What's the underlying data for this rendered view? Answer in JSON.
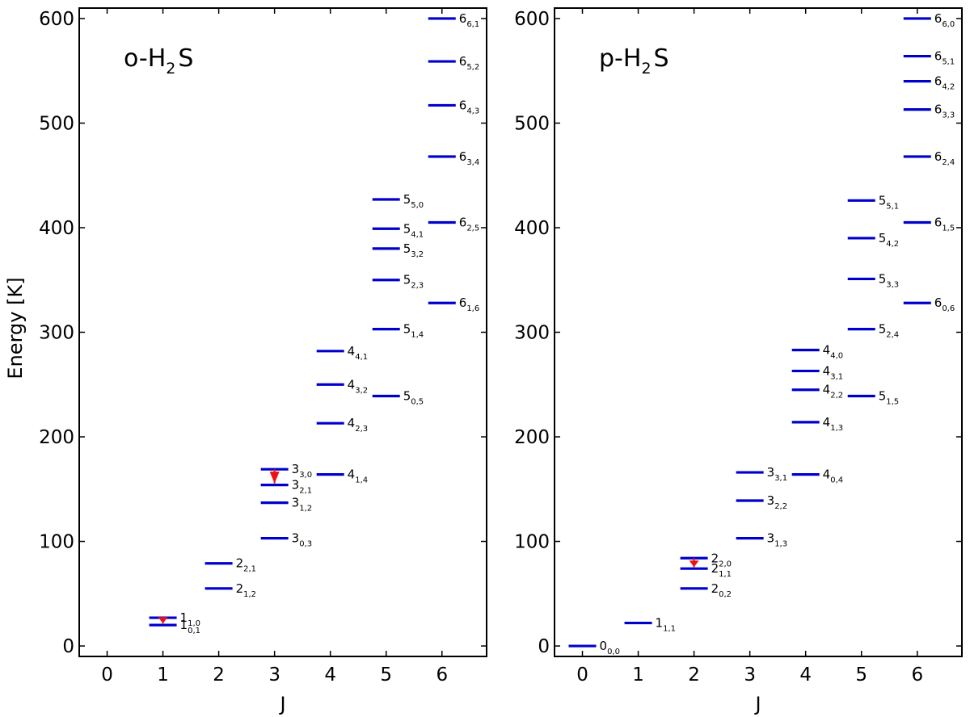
{
  "colors": {
    "level": "#0000cc",
    "transition": "#ee1111",
    "frame": "#000000"
  },
  "chart_data": [
    {
      "type": "energy-level-diagram",
      "title": "o-H₂S",
      "title_parts": {
        "a": "o-H",
        "sub": "2",
        "b": "S"
      },
      "xlabel": "J",
      "ylabel": "Energy [K]",
      "xlim": [
        -0.5,
        6.8
      ],
      "ylim": [
        -10,
        610
      ],
      "xticks": [
        "0",
        "1",
        "2",
        "3",
        "4",
        "5",
        "6"
      ],
      "yticks": [
        "0",
        "100",
        "200",
        "300",
        "400",
        "500",
        "600"
      ],
      "levels": [
        {
          "J": 1,
          "E": 20,
          "main": "1",
          "sub": "0,1"
        },
        {
          "J": 1,
          "E": 27,
          "main": "1",
          "sub": "1,0"
        },
        {
          "J": 2,
          "E": 55,
          "main": "2",
          "sub": "1,2"
        },
        {
          "J": 2,
          "E": 79,
          "main": "2",
          "sub": "2,1"
        },
        {
          "J": 3,
          "E": 103,
          "main": "3",
          "sub": "0,3"
        },
        {
          "J": 3,
          "E": 137,
          "main": "3",
          "sub": "1,2"
        },
        {
          "J": 3,
          "E": 154,
          "main": "3",
          "sub": "2,1"
        },
        {
          "J": 3,
          "E": 169,
          "main": "3",
          "sub": "3,0"
        },
        {
          "J": 4,
          "E": 164,
          "main": "4",
          "sub": "1,4"
        },
        {
          "J": 4,
          "E": 213,
          "main": "4",
          "sub": "2,3"
        },
        {
          "J": 4,
          "E": 250,
          "main": "4",
          "sub": "3,2"
        },
        {
          "J": 4,
          "E": 282,
          "main": "4",
          "sub": "4,1"
        },
        {
          "J": 5,
          "E": 239,
          "main": "5",
          "sub": "0,5"
        },
        {
          "J": 5,
          "E": 303,
          "main": "5",
          "sub": "1,4"
        },
        {
          "J": 5,
          "E": 350,
          "main": "5",
          "sub": "2,3"
        },
        {
          "J": 5,
          "E": 380,
          "main": "5",
          "sub": "3,2"
        },
        {
          "J": 5,
          "E": 399,
          "main": "5",
          "sub": "4,1"
        },
        {
          "J": 5,
          "E": 427,
          "main": "5",
          "sub": "5,0"
        },
        {
          "J": 6,
          "E": 328,
          "main": "6",
          "sub": "1,6"
        },
        {
          "J": 6,
          "E": 405,
          "main": "6",
          "sub": "2,5"
        },
        {
          "J": 6,
          "E": 468,
          "main": "6",
          "sub": "3,4"
        },
        {
          "J": 6,
          "E": 517,
          "main": "6",
          "sub": "4,3"
        },
        {
          "J": 6,
          "E": 559,
          "main": "6",
          "sub": "5,2"
        },
        {
          "J": 6,
          "E": 600,
          "main": "6",
          "sub": "6,1"
        }
      ],
      "transitions": [
        {
          "J": 1,
          "E_upper": 27,
          "E_lower": 20
        },
        {
          "J": 3,
          "E_upper": 169,
          "E_lower": 154
        }
      ]
    },
    {
      "type": "energy-level-diagram",
      "title": "p-H₂S",
      "title_parts": {
        "a": "p-H",
        "sub": "2",
        "b": "S"
      },
      "xlabel": "J",
      "ylabel": "",
      "xlim": [
        -0.5,
        6.8
      ],
      "ylim": [
        -10,
        610
      ],
      "xticks": [
        "0",
        "1",
        "2",
        "3",
        "4",
        "5",
        "6"
      ],
      "yticks": [
        "0",
        "100",
        "200",
        "300",
        "400",
        "500",
        "600"
      ],
      "levels": [
        {
          "J": 0,
          "E": 0,
          "main": "0",
          "sub": "0,0"
        },
        {
          "J": 1,
          "E": 22,
          "main": "1",
          "sub": "1,1"
        },
        {
          "J": 2,
          "E": 55,
          "main": "2",
          "sub": "0,2"
        },
        {
          "J": 2,
          "E": 74,
          "main": "2",
          "sub": "1,1"
        },
        {
          "J": 2,
          "E": 84,
          "main": "2",
          "sub": "2,0"
        },
        {
          "J": 3,
          "E": 103,
          "main": "3",
          "sub": "1,3"
        },
        {
          "J": 3,
          "E": 139,
          "main": "3",
          "sub": "2,2"
        },
        {
          "J": 3,
          "E": 166,
          "main": "3",
          "sub": "3,1"
        },
        {
          "J": 4,
          "E": 164,
          "main": "4",
          "sub": "0,4"
        },
        {
          "J": 4,
          "E": 214,
          "main": "4",
          "sub": "1,3"
        },
        {
          "J": 4,
          "E": 245,
          "main": "4",
          "sub": "2,2"
        },
        {
          "J": 4,
          "E": 263,
          "main": "4",
          "sub": "3,1"
        },
        {
          "J": 4,
          "E": 283,
          "main": "4",
          "sub": "4,0"
        },
        {
          "J": 5,
          "E": 239,
          "main": "5",
          "sub": "1,5"
        },
        {
          "J": 5,
          "E": 303,
          "main": "5",
          "sub": "2,4"
        },
        {
          "J": 5,
          "E": 351,
          "main": "5",
          "sub": "3,3"
        },
        {
          "J": 5,
          "E": 390,
          "main": "5",
          "sub": "4,2"
        },
        {
          "J": 5,
          "E": 426,
          "main": "5",
          "sub": "5,1"
        },
        {
          "J": 6,
          "E": 328,
          "main": "6",
          "sub": "0,6"
        },
        {
          "J": 6,
          "E": 405,
          "main": "6",
          "sub": "1,5"
        },
        {
          "J": 6,
          "E": 468,
          "main": "6",
          "sub": "2,4"
        },
        {
          "J": 6,
          "E": 513,
          "main": "6",
          "sub": "3,3"
        },
        {
          "J": 6,
          "E": 540,
          "main": "6",
          "sub": "4,2"
        },
        {
          "J": 6,
          "E": 564,
          "main": "6",
          "sub": "5,1"
        },
        {
          "J": 6,
          "E": 600,
          "main": "6",
          "sub": "6,0"
        }
      ],
      "transitions": [
        {
          "J": 2,
          "E_upper": 84,
          "E_lower": 74
        }
      ]
    }
  ]
}
